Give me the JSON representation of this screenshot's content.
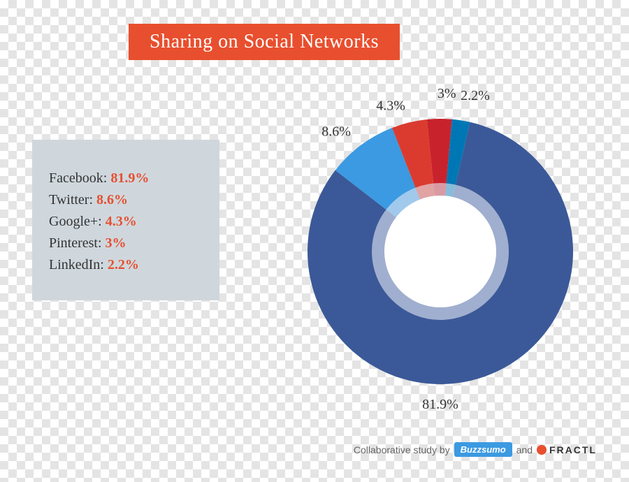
{
  "title": {
    "text": "Sharing on Social Networks",
    "background_color": "#e84f2e",
    "text_color": "#ffffff",
    "font_size": 28
  },
  "legend": {
    "background_color": "#cfd7dd",
    "label_color": "#333333",
    "font_size": 20,
    "items": [
      {
        "label": "Facebook:",
        "value": "81.9%",
        "value_color": "#e84f2e"
      },
      {
        "label": "Twitter:",
        "value": "8.6%",
        "value_color": "#e84f2e"
      },
      {
        "label": "Google+:",
        "value": "4.3%",
        "value_color": "#e84f2e"
      },
      {
        "label": "Pinterest:",
        "value": "3%",
        "value_color": "#e84f2e"
      },
      {
        "label": "LinkedIn:",
        "value": "2.2%",
        "value_color": "#e84f2e"
      }
    ]
  },
  "chart": {
    "type": "donut",
    "start_angle_deg": 5,
    "direction": "clockwise",
    "outer_radius": 190,
    "inner_radius": 80,
    "inner_ring_color": "#e5eaf3",
    "inner_ring_width": 18,
    "center_fill": "#ffffff",
    "slices": [
      {
        "name": "LinkedIn",
        "value": 2.2,
        "color": "#0077b5",
        "label": "2.2%"
      },
      {
        "name": "Facebook",
        "value": 81.9,
        "color": "#3b5998",
        "label": "81.9%"
      },
      {
        "name": "Twitter",
        "value": 8.6,
        "color": "#3b9ae1",
        "label": "8.6%"
      },
      {
        "name": "Google+",
        "value": 4.3,
        "color": "#db3b2f",
        "label": "4.3%"
      },
      {
        "name": "Pinterest",
        "value": 3.0,
        "color": "#c8232c",
        "label": "3%"
      }
    ],
    "label_font_size": 20,
    "label_color": "#333333"
  },
  "attribution": {
    "prefix": "Collaborative study by",
    "buzzsumo": {
      "text": "Buzzsumo",
      "bg": "#3b9ae1",
      "color": "#ffffff"
    },
    "joiner": "and",
    "fractl": {
      "text": "FRACTL",
      "dot_color": "#e84f2e",
      "text_color": "#333333"
    }
  }
}
